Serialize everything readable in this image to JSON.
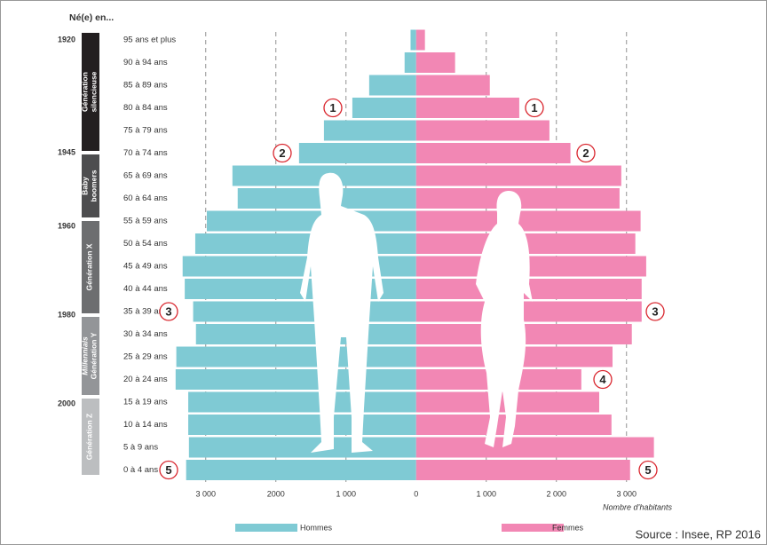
{
  "chart_data": {
    "type": "pyramid",
    "header": "Né(e) en...",
    "categories": [
      "95 ans et plus",
      "90 à 94 ans",
      "85 à 89 ans",
      "80 à 84 ans",
      "75 à 79 ans",
      "70 à 74 ans",
      "65 à 69 ans",
      "60 à 64 ans",
      "55 à 59 ans",
      "50 à 54 ans",
      "45 à 49 ans",
      "40 à 44 ans",
      "35 à 39 ans",
      "30 à 34 ans",
      "25 à 29 ans",
      "20 à 24 ans",
      "15 à 19 ans",
      "10 à 14 ans",
      "5 à 9 ans",
      "0 à 4 ans"
    ],
    "series": [
      {
        "name": "Hommes",
        "color": "#7fcad4",
        "side": "left",
        "values": [
          80,
          165,
          670,
          910,
          1315,
          1670,
          2620,
          2545,
          2985,
          3150,
          3330,
          3300,
          3180,
          3140,
          3420,
          3430,
          3250,
          3250,
          3240,
          3280
        ]
      },
      {
        "name": "Femmes",
        "color": "#f287b4",
        "side": "right",
        "values": [
          125,
          555,
          1050,
          1470,
          1900,
          2200,
          2925,
          2900,
          3200,
          3125,
          3280,
          3215,
          3215,
          3075,
          2800,
          2355,
          2610,
          2785,
          3390,
          3050
        ]
      }
    ],
    "xlim": [
      -4200,
      3800
    ],
    "xticks": [
      {
        "value": -3000,
        "label": "3 000"
      },
      {
        "value": -2000,
        "label": "2000"
      },
      {
        "value": -1000,
        "label": "1 000"
      },
      0,
      {
        "value": 1000,
        "label": "1 000"
      },
      {
        "value": 2000,
        "label": "2 000"
      },
      {
        "value": 3000,
        "label": "3 000"
      }
    ],
    "grid": true,
    "x_label": "Nombre d’habitants",
    "birth_years": [
      "1920",
      "1945",
      "1960",
      "1980",
      "2000"
    ],
    "generations": [
      {
        "lines": [
          "Génération",
          "silencieuse"
        ],
        "color": "#231f20"
      },
      {
        "lines": [
          "Baby",
          "boomers"
        ],
        "color": "#4d4d4f"
      },
      {
        "lines": [
          "Génération X"
        ],
        "color": "#6d6e70"
      },
      {
        "lines": [
          "Millennials",
          "Génération Y"
        ],
        "color": "#939598"
      },
      {
        "lines": [
          "Génération Z"
        ],
        "color": "#bcbec0"
      }
    ],
    "annotations": [
      "1",
      "1",
      "2",
      "2",
      "3",
      "3",
      "4",
      "5",
      "5"
    ],
    "source": "Source : Insee, RP 2016"
  }
}
